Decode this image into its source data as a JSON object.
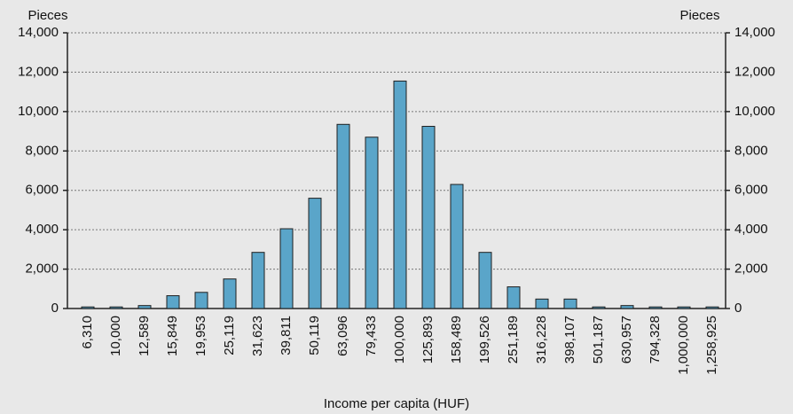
{
  "chart_data": {
    "type": "bar",
    "ylabel": "Pieces",
    "y2label": "Pieces",
    "xlabel": "Income per capita (HUF)",
    "categories": [
      "6,310",
      "10,000",
      "12,589",
      "15,849",
      "19,953",
      "25,119",
      "31,623",
      "39,811",
      "50,119",
      "63,096",
      "79,433",
      "100,000",
      "125,893",
      "158,489",
      "199,526",
      "251,189",
      "316,228",
      "398,107",
      "501,187",
      "630,957",
      "794,328",
      "1,000,000",
      "1,258,925"
    ],
    "values": [
      80,
      80,
      150,
      650,
      820,
      1500,
      2850,
      4050,
      5600,
      9350,
      8700,
      11550,
      9250,
      6300,
      2850,
      1100,
      480,
      480,
      80,
      150,
      80,
      80,
      80
    ],
    "color": "#5aa5c9",
    "ylim": [
      0,
      14000
    ],
    "yticks": [
      0,
      {
        "value": 2000,
        "label": "2,000"
      },
      {
        "value": 4000,
        "label": "4,000"
      },
      {
        "value": 6000,
        "label": "6,000"
      },
      {
        "value": 8000,
        "label": "8,000"
      },
      {
        "value": 10000,
        "label": "10,000"
      },
      {
        "value": 12000,
        "label": "12,000"
      },
      {
        "value": 14000,
        "label": "14,000"
      }
    ],
    "y2lim": [
      0,
      14000
    ],
    "y2ticks": [
      0,
      {
        "value": 2000,
        "label": "2,000"
      },
      {
        "value": 4000,
        "label": "4,000"
      },
      {
        "value": 6000,
        "label": "6,000"
      },
      {
        "value": 8000,
        "label": "8,000"
      },
      {
        "value": 10000,
        "label": "10,000"
      },
      {
        "value": 12000,
        "label": "12,000"
      },
      {
        "value": 14000,
        "label": "14,000"
      }
    ],
    "grid": true
  }
}
